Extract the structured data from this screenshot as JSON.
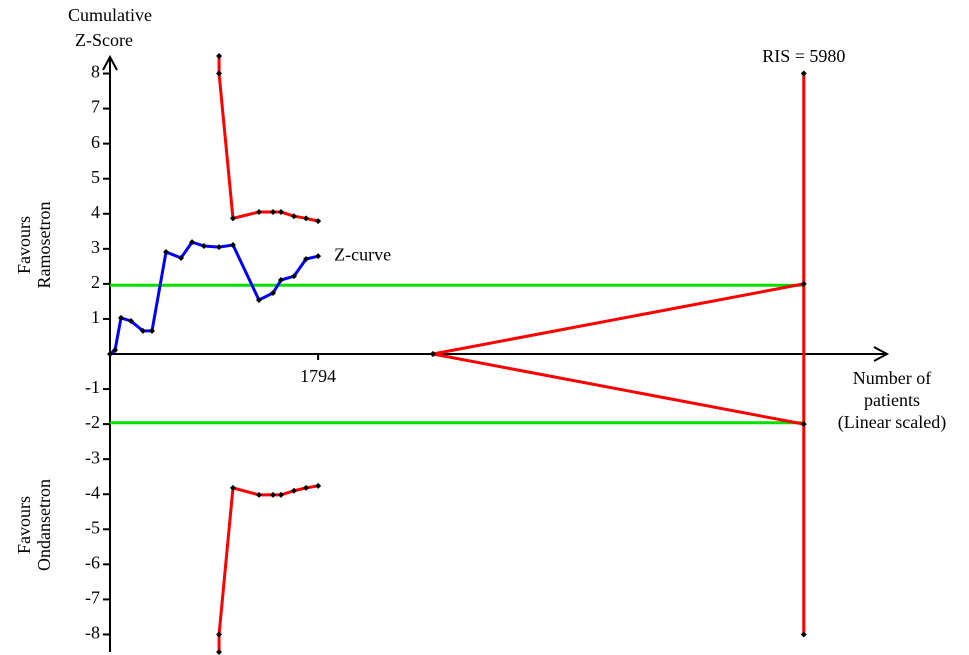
{
  "chart_data": {
    "type": "line",
    "ylabel": [
      "Cumulative",
      "Z-Score"
    ],
    "xlabel": [
      "Number of",
      "patients",
      "(Linear scaled)"
    ],
    "favours_upper": [
      "Favours",
      "Ramosetron"
    ],
    "favours_lower": [
      "Favours",
      "Ondansetron"
    ],
    "annotation": {
      "text": "RIS = 5980",
      "x": 5980,
      "color": "#ff0000"
    },
    "xlim": [
      0,
      6680
    ],
    "ylim": [
      -8.5,
      8.5
    ],
    "xticks": [
      1794
    ],
    "yticks": [
      -8,
      -7,
      -6,
      -5,
      -4,
      -3,
      -2,
      -1,
      1,
      2,
      3,
      4,
      5,
      6,
      7,
      8
    ],
    "series": [
      {
        "color": "#00e000",
        "markers": false,
        "x": [
          0,
          5980
        ],
        "values": [
          1.96,
          1.96
        ]
      },
      {
        "color": "#00e000",
        "markers": false,
        "x": [
          0,
          5980
        ],
        "values": [
          -1.96,
          -1.96
        ]
      },
      {
        "color": "#ff0000",
        "markers": true,
        "x": [
          5980,
          5980
        ],
        "values": [
          8,
          -8
        ]
      },
      {
        "color": "#ff0000",
        "markers": true,
        "x": [
          2784,
          5980
        ],
        "values": [
          0,
          2
        ]
      },
      {
        "color": "#ff0000",
        "markers": true,
        "x": [
          2784,
          5980
        ],
        "values": [
          0,
          -2
        ]
      },
      {
        "color": "#ff0000",
        "markers": true,
        "x": [
          940,
          940,
          1060,
          1284,
          1405,
          1474,
          1586,
          1690,
          1794
        ],
        "values": [
          8.5,
          8.0,
          3.87,
          4.05,
          4.05,
          4.05,
          3.93,
          3.87,
          3.79
        ]
      },
      {
        "color": "#ff0000",
        "markers": true,
        "x": [
          940,
          940,
          1060,
          1284,
          1405,
          1474,
          1586,
          1690,
          1794
        ],
        "values": [
          -8.5,
          -8.0,
          -3.82,
          -4.02,
          -4.02,
          -4.02,
          -3.9,
          -3.82,
          -3.76
        ]
      },
      {
        "name": "Z-curve",
        "color": "#0000ff",
        "markers": true,
        "x": [
          0,
          43,
          95,
          181,
          284,
          362,
          483,
          612,
          707,
          810,
          940,
          1060,
          1284,
          1405,
          1474,
          1586,
          1690,
          1794
        ],
        "values": [
          0,
          0.11,
          1.03,
          0.94,
          0.66,
          0.66,
          2.91,
          2.74,
          3.19,
          3.08,
          3.05,
          3.11,
          1.54,
          1.74,
          2.11,
          2.22,
          2.71,
          2.79
        ]
      }
    ]
  }
}
